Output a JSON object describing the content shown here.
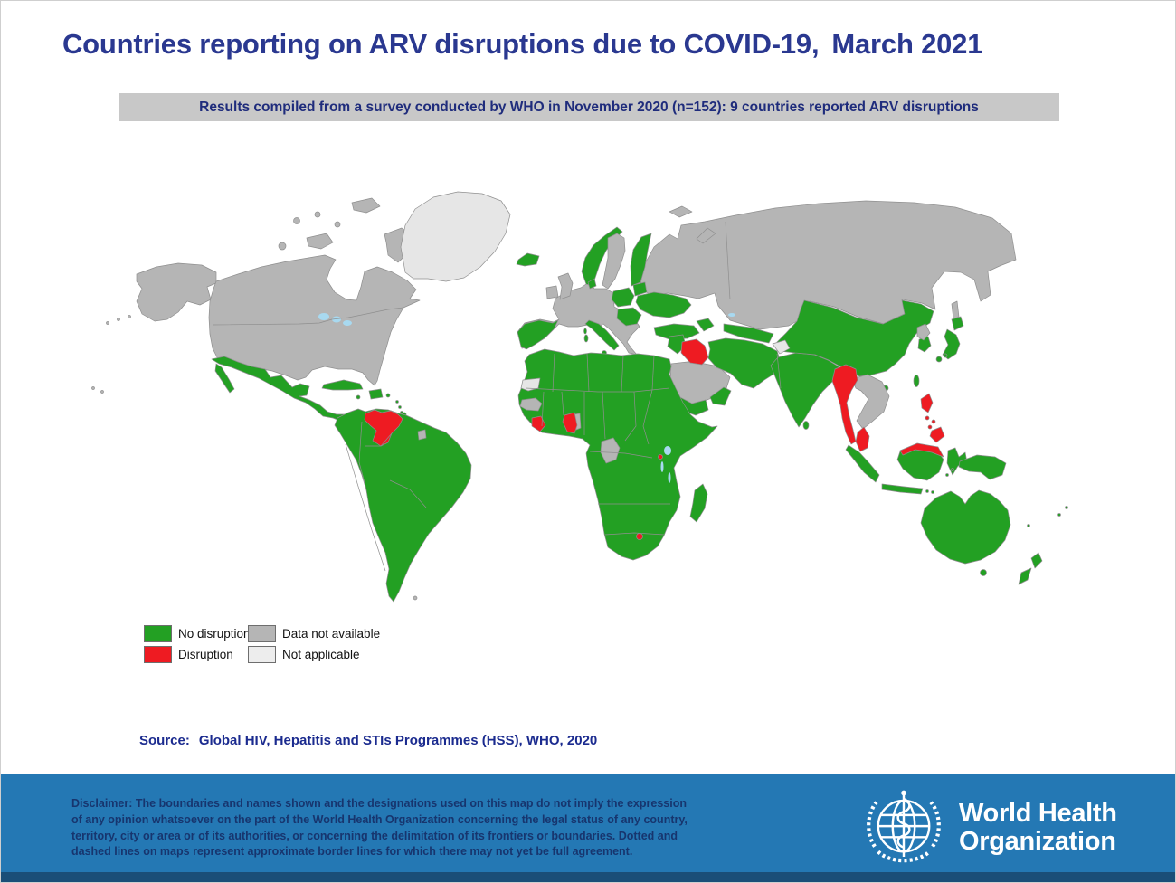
{
  "title": {
    "main": "Countries reporting on ARV disruptions due to COVID-19,",
    "date": "March 2021"
  },
  "banner": {
    "text": "Results compiled from a survey conducted by WHO in November 2020 (n=152): 9 countries reported ARV disruptions"
  },
  "legend": {
    "items": [
      {
        "label": "No disruption",
        "color": "#23A023"
      },
      {
        "label": "Disruption",
        "color": "#EE1B22"
      },
      {
        "label": "Data not available",
        "color": "#B5B5B5"
      },
      {
        "label": "Not applicable",
        "color": "#EDEDED"
      }
    ]
  },
  "map": {
    "colors": {
      "no_disruption": "#23A023",
      "disruption": "#EE1B22",
      "data_not_available": "#B5B5B5",
      "not_applicable": "#E6E6E6",
      "lake": "#A8D9F0",
      "border": "#8F8F8F",
      "ocean": "#FFFFFF"
    },
    "survey_n": "152",
    "disrupted_count": "9",
    "disrupted_countries": [
      "Venezuela",
      "Liberia",
      "Ghana",
      "Iraq",
      "Burundi",
      "Lesotho",
      "Myanmar",
      "Malaysia",
      "Philippines"
    ],
    "not_applicable_areas": [
      "Greenland",
      "Western Sahara"
    ]
  },
  "source": {
    "label": "Source:",
    "text": "Global HIV, Hepatitis and STIs Programmes (HSS), WHO, 2020"
  },
  "footer": {
    "disclaimer": "Disclaimer: The boundaries and names shown and the designations used on this map do not imply the expression of any opinion whatsoever on the part of the World Health Organization concerning the legal status of any country, territory, city or area or of its authorities, or concerning the delimitation of its frontiers or boundaries. Dotted and dashed lines on maps represent approximate border lines for which there may not yet be full agreement.",
    "logo_line1": "World Health",
    "logo_line2": "Organization"
  }
}
